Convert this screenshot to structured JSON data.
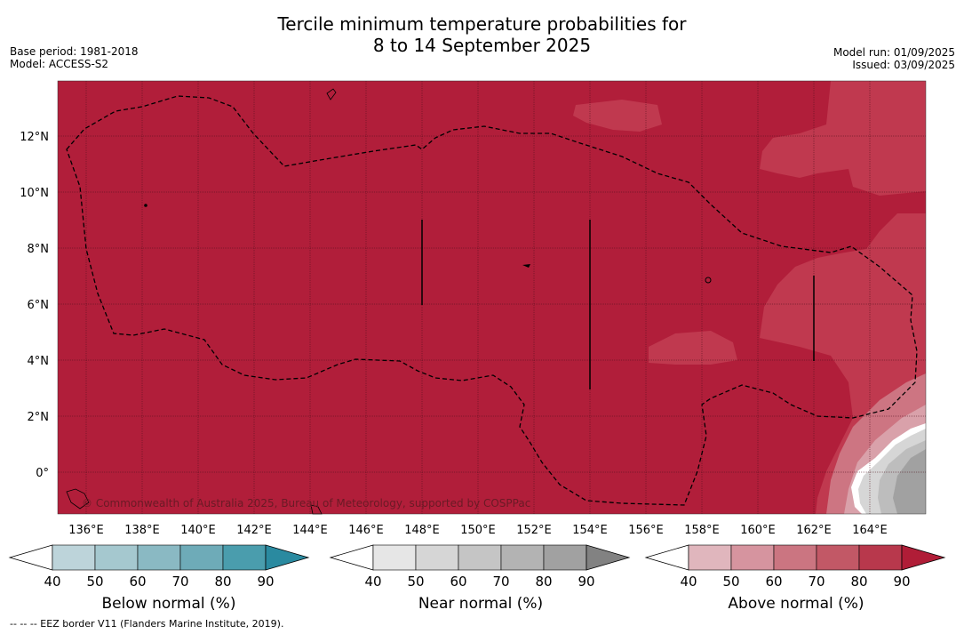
{
  "title": {
    "line1": "Tercile minimum temperature probabilities for",
    "line2": "8 to 14 September 2025"
  },
  "meta_left": {
    "base_period": "Base period: 1981-2018",
    "model": "Model: ACCESS-S2"
  },
  "meta_right": {
    "model_run": "Model run: 01/09/2025",
    "issued": "Issued: 03/09/2025"
  },
  "map": {
    "lon_labels": [
      "136°E",
      "138°E",
      "140°E",
      "142°E",
      "144°E",
      "146°E",
      "148°E",
      "150°E",
      "152°E",
      "154°E",
      "156°E",
      "158°E",
      "160°E",
      "162°E",
      "164°E"
    ],
    "lat_labels": [
      "12°N",
      "10°N",
      "8°N",
      "6°N",
      "4°N",
      "2°N",
      "0°"
    ],
    "background_color": "#b11e3a",
    "copyright": "© Commonwealth of Australia 2025, Bureau of Meteorology, supported by COSPPac"
  },
  "colorbars": [
    {
      "title": "Below normal (%)",
      "ticks": [
        "40",
        "50",
        "60",
        "70",
        "80",
        "90"
      ],
      "colors": [
        "#bdd4da",
        "#a5c8cf",
        "#8ab9c3",
        "#6eabb8",
        "#4a9dad",
        "#2a8aa0"
      ]
    },
    {
      "title": "Near normal (%)",
      "ticks": [
        "40",
        "50",
        "60",
        "70",
        "80",
        "90"
      ],
      "colors": [
        "#e6e6e6",
        "#d6d6d6",
        "#c5c5c5",
        "#b3b3b3",
        "#a1a1a1",
        "#828282"
      ]
    },
    {
      "title": "Above normal (%)",
      "ticks": [
        "40",
        "50",
        "60",
        "70",
        "80",
        "90"
      ],
      "colors": [
        "#e0b6bd",
        "#d6949f",
        "#cb7581",
        "#c25866",
        "#b8384c",
        "#b01d37"
      ]
    }
  ],
  "footer": "--  --  -- EEZ border V11 (Flanders Marine Institute, 2019)."
}
